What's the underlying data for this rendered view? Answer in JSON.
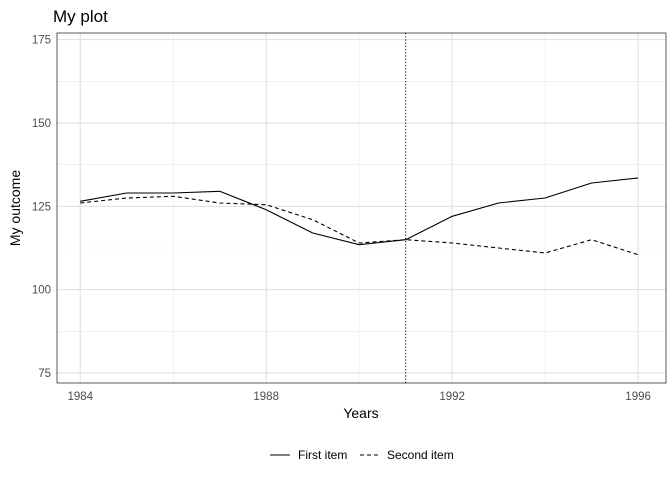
{
  "chart_data": {
    "type": "line",
    "title": "My plot",
    "xlabel": "Years",
    "ylabel": "My outcome",
    "xlim": [
      1983.5,
      1996.6
    ],
    "ylim": [
      72,
      177
    ],
    "xticks": [
      1984,
      1988,
      1992,
      1996
    ],
    "xtick_labels": [
      "1984",
      "1988",
      "1992",
      "1996"
    ],
    "yticks": [
      75,
      100,
      125,
      150,
      175
    ],
    "ytick_labels": [
      "75",
      "100",
      "125",
      "150",
      "175"
    ],
    "grid": true,
    "vline": {
      "x": 1991,
      "style": "dotted"
    },
    "legend_position": "bottom",
    "x": [
      1984,
      1985,
      1986,
      1987,
      1988,
      1989,
      1990,
      1991,
      1992,
      1993,
      1994,
      1995,
      1996
    ],
    "series": [
      {
        "name": "First item",
        "line_style": "solid",
        "color": "#000000",
        "values": [
          126.5,
          129,
          129,
          129.5,
          124,
          117,
          113.5,
          115,
          122,
          126,
          127.5,
          132,
          133.5
        ]
      },
      {
        "name": "Second item",
        "line_style": "dashed",
        "color": "#000000",
        "values": [
          126,
          127.5,
          128,
          126,
          125.5,
          121,
          114,
          115,
          114,
          112.5,
          111,
          115,
          110.5
        ]
      }
    ]
  }
}
